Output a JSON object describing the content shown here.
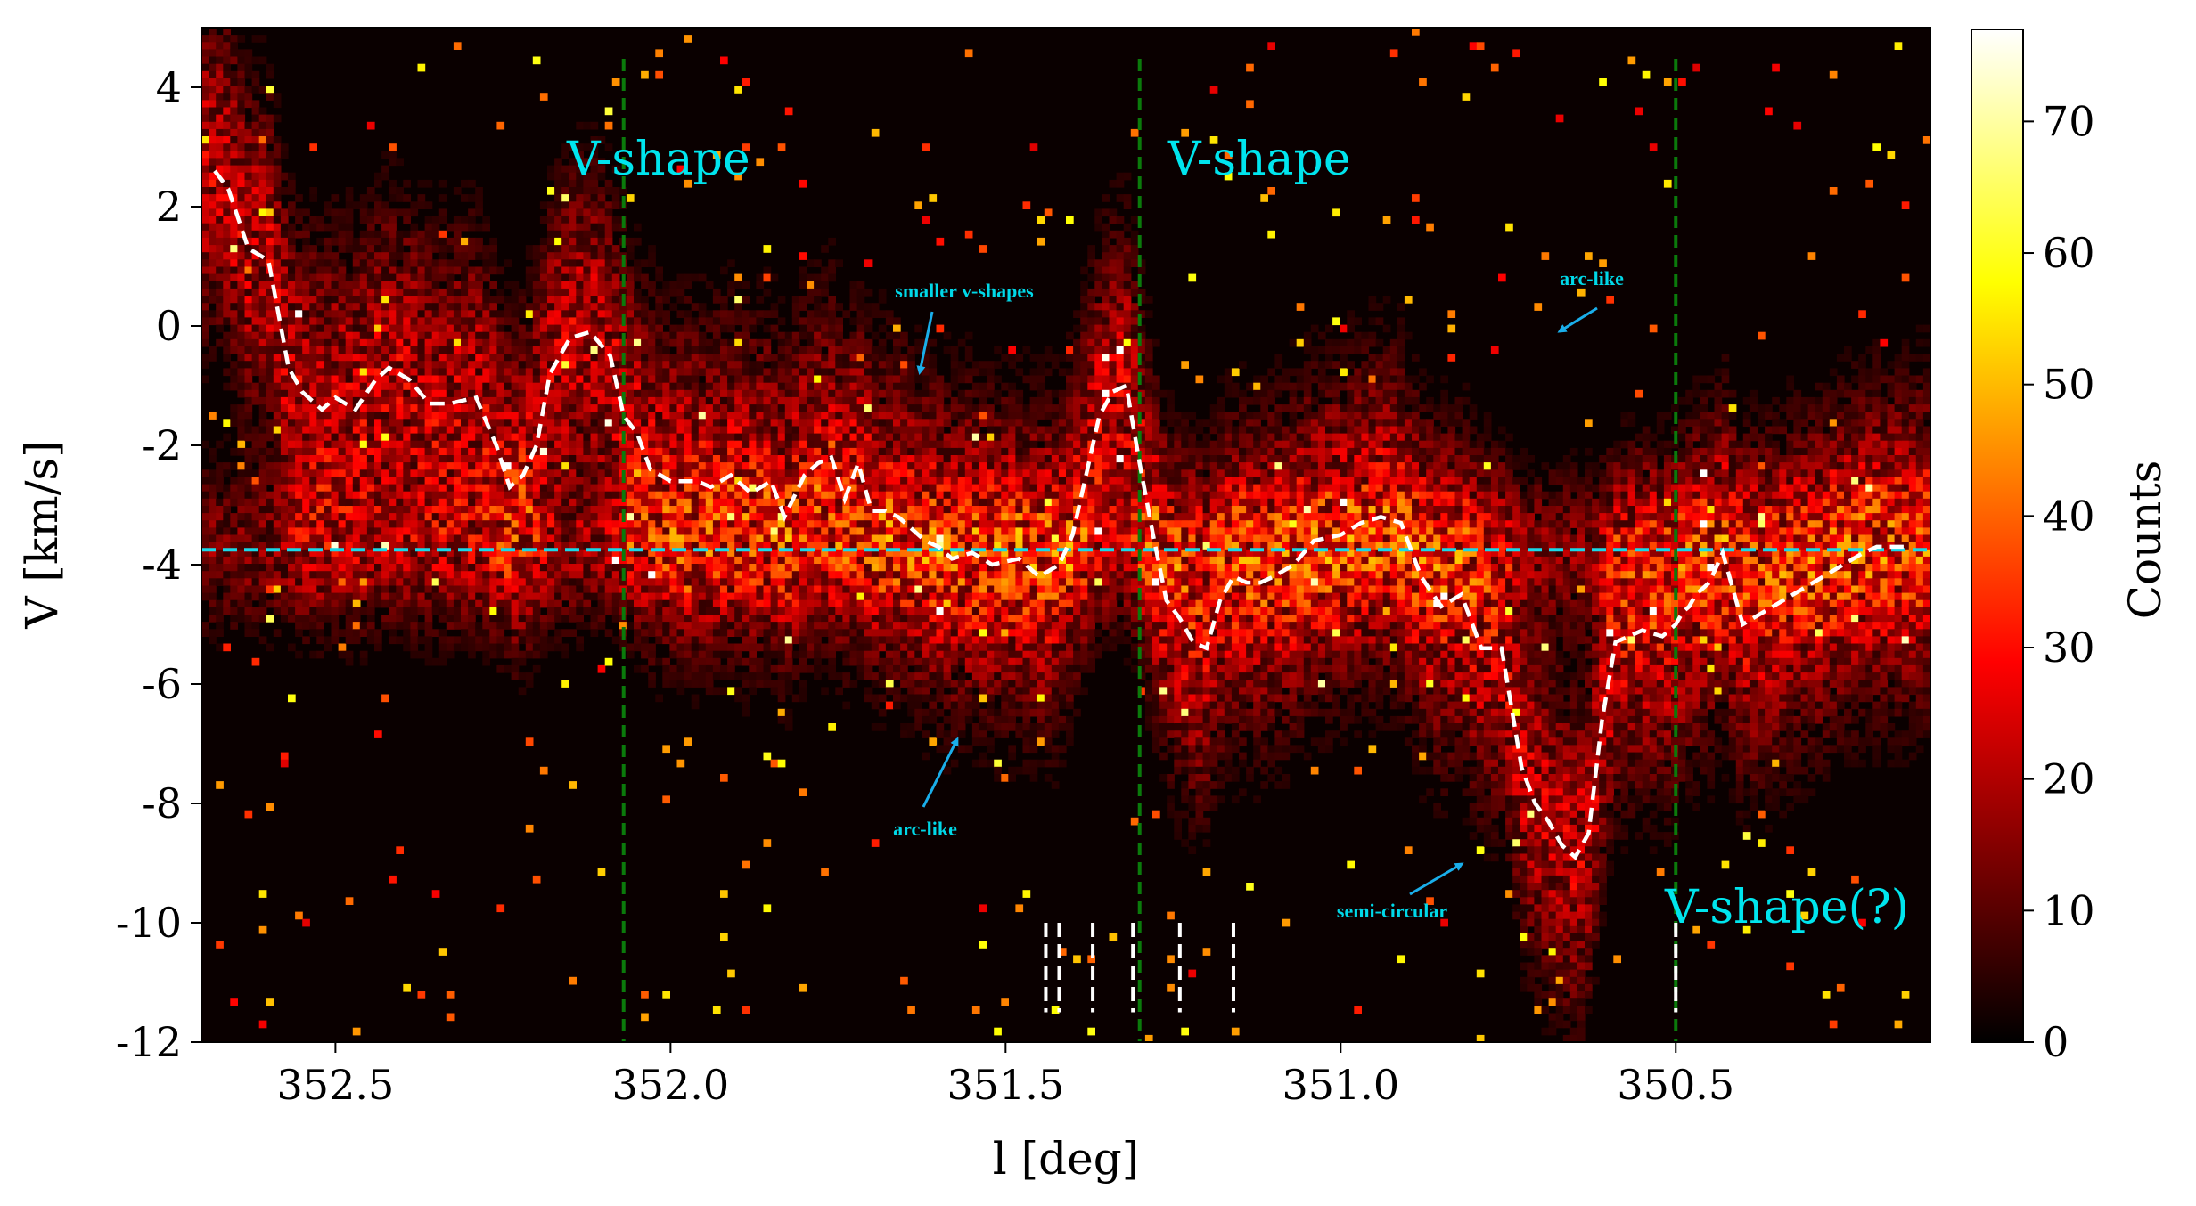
{
  "chart_data": {
    "type": "heatmap",
    "xlabel": "l [deg]",
    "ylabel": "V [km/s]",
    "xlim": [
      352.7,
      350.12
    ],
    "ylim": [
      -12,
      5
    ],
    "x_ticks": [
      352.5,
      352.0,
      351.5,
      351.0,
      350.5
    ],
    "x_tick_labels": [
      "352.5",
      "352.0",
      "351.5",
      "351.0",
      "350.5"
    ],
    "y_ticks": [
      4,
      2,
      0,
      -2,
      -4,
      -6,
      -8,
      -10,
      -12
    ],
    "y_tick_labels": [
      "4",
      "2",
      "0",
      "-2",
      "-4",
      "-6",
      "-8",
      "-10",
      "-12"
    ],
    "colorbar": {
      "label": "Counts",
      "range": [
        0,
        77
      ],
      "ticks": [
        0,
        10,
        20,
        30,
        40,
        50,
        60,
        70
      ],
      "tick_labels": [
        "0",
        "10",
        "20",
        "30",
        "40",
        "50",
        "60",
        "70"
      ],
      "colormap": "hot"
    },
    "intensity_ridge": {
      "l": [
        352.68,
        352.66,
        352.63,
        352.6,
        352.57,
        352.55,
        352.52,
        352.5,
        352.47,
        352.44,
        352.42,
        352.39,
        352.36,
        352.33,
        352.29,
        352.26,
        352.24,
        352.22,
        352.2,
        352.18,
        352.15,
        352.12,
        352.09,
        352.07,
        352.05,
        352.03,
        352.0,
        351.98,
        351.96,
        351.94,
        351.91,
        351.88,
        351.85,
        351.83,
        351.8,
        351.78,
        351.76,
        351.74,
        351.72,
        351.7,
        351.68,
        351.66,
        351.64,
        351.62,
        351.6,
        351.58,
        351.55,
        351.52,
        351.48,
        351.45,
        351.42,
        351.4,
        351.38,
        351.36,
        351.34,
        351.32,
        351.3,
        351.28,
        351.26,
        351.24,
        351.22,
        351.2,
        351.18,
        351.16,
        351.14,
        351.12,
        351.1,
        351.07,
        351.04,
        351.0,
        350.97,
        350.94,
        350.91,
        350.88,
        350.85,
        350.82,
        350.79,
        350.76,
        350.73,
        350.71,
        350.69,
        350.67,
        350.65,
        350.63,
        350.61,
        350.59,
        350.57,
        350.55,
        350.52,
        350.5,
        350.49,
        350.48,
        350.47,
        350.45,
        350.43,
        350.4,
        350.37,
        350.34,
        350.31,
        350.28,
        350.25,
        350.22,
        350.2,
        350.18,
        350.16
      ],
      "v": [
        2.6,
        2.3,
        1.3,
        1.1,
        -0.7,
        -1.1,
        -1.4,
        -1.2,
        -1.4,
        -0.9,
        -0.7,
        -0.9,
        -1.3,
        -1.3,
        -1.2,
        -2.0,
        -2.7,
        -2.5,
        -2.0,
        -0.8,
        -0.2,
        -0.1,
        -0.5,
        -1.5,
        -1.8,
        -2.4,
        -2.6,
        -2.6,
        -2.6,
        -2.7,
        -2.5,
        -2.8,
        -2.6,
        -3.2,
        -2.5,
        -2.3,
        -2.2,
        -2.9,
        -2.3,
        -3.1,
        -3.1,
        -3.2,
        -3.4,
        -3.6,
        -3.7,
        -3.9,
        -3.8,
        -4.0,
        -3.9,
        -4.2,
        -4.0,
        -3.5,
        -2.5,
        -1.5,
        -1.1,
        -1.0,
        -2.3,
        -3.5,
        -4.6,
        -4.9,
        -5.3,
        -5.4,
        -4.6,
        -4.2,
        -4.3,
        -4.3,
        -4.2,
        -4.0,
        -3.6,
        -3.5,
        -3.3,
        -3.2,
        -3.3,
        -4.2,
        -4.7,
        -4.5,
        -5.4,
        -5.4,
        -7.4,
        -8.0,
        -8.3,
        -8.7,
        -8.9,
        -8.5,
        -6.6,
        -5.3,
        -5.2,
        -5.1,
        -5.2,
        -5.0,
        -4.8,
        -4.7,
        -4.5,
        -4.3,
        -3.8,
        -5.0,
        -4.8,
        -4.6,
        -4.4,
        -4.2,
        -4.0,
        -3.8,
        -3.7,
        -3.7,
        -3.7
      ]
    },
    "horizontal_reference_v": -3.75,
    "vertical_reference_l": [
      352.07,
      351.3,
      350.5
    ],
    "short_markers_l": [
      351.44,
      351.42,
      351.37,
      351.31,
      351.24,
      351.16,
      350.5
    ],
    "short_markers_v_range": [
      -11.5,
      -10.0
    ],
    "annotations": {
      "vshape_1": "V-shape",
      "vshape_2": "V-shape",
      "vshape_3": "V-shape(?)",
      "smaller_vshapes": "smaller v-shapes",
      "arc_like_1": "arc-like",
      "arc_like_2": "arc-like",
      "semi_circular": "semi-circular"
    },
    "colors": {
      "annotation": "#00e5ee",
      "arrow": "#1aaeea",
      "vertical_lines": "#0b7a0b",
      "horizontal_line": "#1ad8e8",
      "ridge": "#ffffff"
    }
  }
}
